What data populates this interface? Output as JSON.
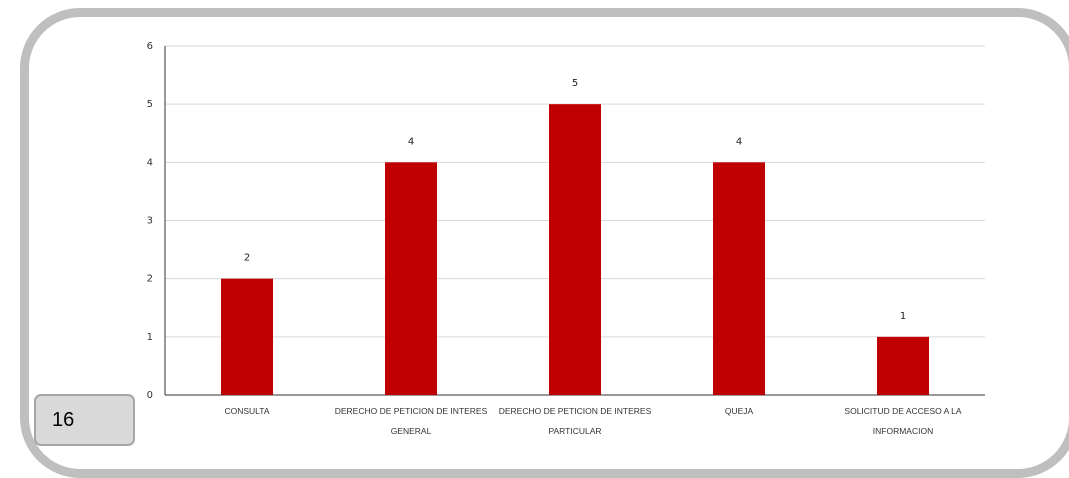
{
  "page_number": "16",
  "chart_data": {
    "type": "bar",
    "categories": [
      [
        "CONSULTA"
      ],
      [
        "DERECHO DE PETICION DE INTERES",
        "GENERAL"
      ],
      [
        "DERECHO DE PETICION DE INTERES",
        "PARTICULAR"
      ],
      [
        "QUEJA"
      ],
      [
        "SOLICITUD DE ACCESO A LA",
        "INFORMACION"
      ]
    ],
    "values": [
      2,
      4,
      5,
      4,
      1
    ],
    "ylim": [
      0,
      6
    ],
    "yticks": [
      "0",
      "1",
      "2",
      "3",
      "4",
      "5",
      "6"
    ],
    "grid": true,
    "data_labels": true,
    "bar_color": "#c00000",
    "grid_color": "#d9d9d9",
    "axis_color": "#333333"
  }
}
